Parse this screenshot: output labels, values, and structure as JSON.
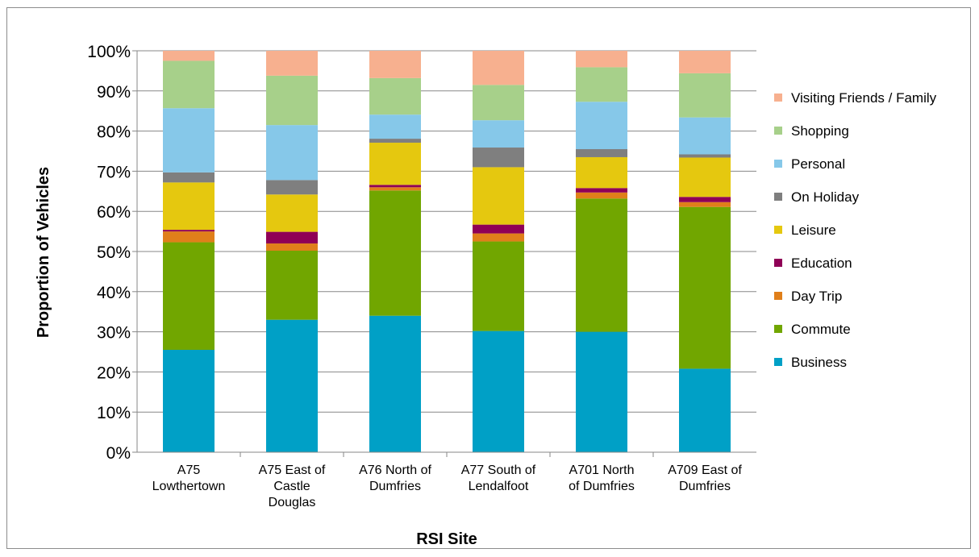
{
  "chart_data": {
    "type": "bar",
    "stacked": true,
    "percent_stacked": true,
    "xlabel": "RSI Site",
    "ylabel": "Proportion of Vehicles",
    "ylim": [
      0,
      100
    ],
    "y_ticks": [
      "0%",
      "10%",
      "20%",
      "30%",
      "40%",
      "50%",
      "60%",
      "70%",
      "80%",
      "90%",
      "100%"
    ],
    "grid": "horizontal",
    "legend_position": "right",
    "categories": [
      [
        "A75",
        "Lowthertown"
      ],
      [
        "A75 East of",
        "Castle",
        "Douglas"
      ],
      [
        "A76 North of",
        "Dumfries"
      ],
      [
        "A77 South of",
        "Lendalfoot"
      ],
      [
        "A701 North",
        "of Dumfries"
      ],
      [
        "A709 East of",
        "Dumfries"
      ]
    ],
    "series": [
      {
        "name": "Business",
        "color": "#00a0c6",
        "values": [
          25.5,
          33.0,
          34.0,
          30.2,
          30.0,
          20.8
        ]
      },
      {
        "name": "Commute",
        "color": "#71a600",
        "values": [
          26.8,
          17.2,
          31.2,
          22.3,
          33.2,
          40.3
        ]
      },
      {
        "name": "Day Trip",
        "color": "#e07f1a",
        "values": [
          2.7,
          1.8,
          0.8,
          2.0,
          1.5,
          1.2
        ]
      },
      {
        "name": "Education",
        "color": "#8f0056",
        "values": [
          0.4,
          2.9,
          0.6,
          2.2,
          1.1,
          1.3
        ]
      },
      {
        "name": "Leisure",
        "color": "#e5c80f",
        "values": [
          11.8,
          9.3,
          10.5,
          14.3,
          7.7,
          9.8
        ]
      },
      {
        "name": "On Holiday",
        "color": "#7f7f7f",
        "values": [
          2.5,
          3.6,
          1.0,
          4.9,
          2.0,
          0.8
        ]
      },
      {
        "name": "Personal",
        "color": "#86c8e9",
        "values": [
          16.0,
          13.7,
          6.0,
          6.8,
          11.8,
          9.2
        ]
      },
      {
        "name": "Shopping",
        "color": "#a7d08a",
        "values": [
          11.8,
          12.3,
          9.1,
          8.8,
          8.6,
          11.0
        ]
      },
      {
        "name": "Visiting Friends / Family",
        "color": "#f7b08f",
        "values": [
          2.5,
          6.2,
          6.8,
          8.5,
          4.1,
          5.6
        ]
      }
    ]
  }
}
